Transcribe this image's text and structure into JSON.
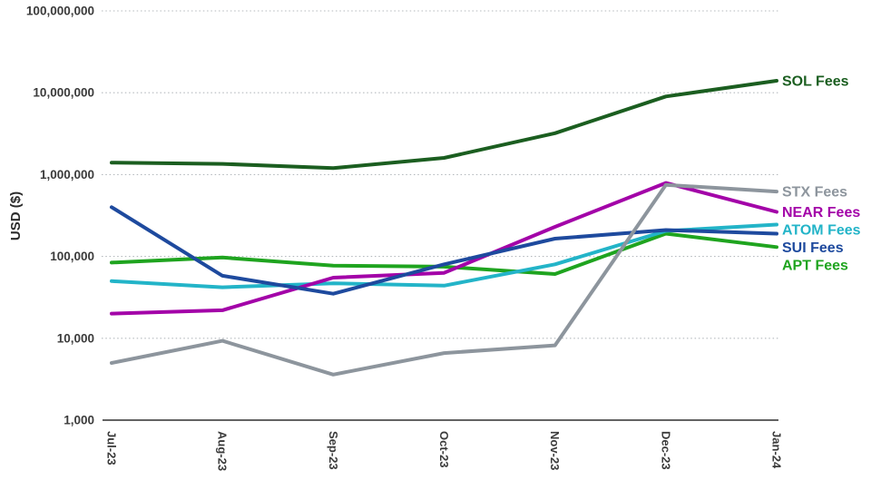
{
  "chart_data": {
    "type": "line",
    "title": "",
    "y_scale": "log",
    "grid": "horizontal-dotted",
    "legend_position": "line-end-right-labels",
    "y_axis": {
      "title": "USD ($)",
      "ylim": [
        1000,
        100000000
      ],
      "ticks": [
        {
          "label": "1,000",
          "value": 1000
        },
        {
          "label": "10,000",
          "value": 10000
        },
        {
          "label": "100,000",
          "value": 100000
        },
        {
          "label": "1,000,000",
          "value": 1000000
        },
        {
          "label": "10,000,000",
          "value": 10000000
        },
        {
          "label": "100,000,000",
          "value": 100000000
        }
      ]
    },
    "x_axis": {
      "labels": [
        "Jul-23",
        "Aug-23",
        "Sep-23",
        "Oct-23",
        "Nov-23",
        "Dec-23",
        "Jan-24"
      ]
    },
    "series": [
      {
        "name": "APT Fees",
        "color": "#1fa41f",
        "values": [
          84000,
          97000,
          77000,
          75000,
          61000,
          190000,
          130000
        ]
      },
      {
        "name": "ATOM Fees",
        "color": "#23b4c8",
        "values": [
          50000,
          42000,
          47000,
          44000,
          80000,
          205000,
          245000
        ]
      },
      {
        "name": "NEAR Fees",
        "color": "#a303a8",
        "values": [
          20000,
          22000,
          55000,
          63000,
          230000,
          790000,
          350000
        ]
      },
      {
        "name": "SUI Fees",
        "color": "#1e4a9e",
        "values": [
          400000,
          58000,
          35000,
          80000,
          165000,
          210000,
          190000
        ]
      },
      {
        "name": "STX Fees",
        "color": "#8d959d",
        "values": [
          5000,
          9300,
          3600,
          6600,
          8200,
          750000,
          620000
        ]
      },
      {
        "name": "SOL Fees",
        "color": "#1b5e20",
        "values": [
          1400000,
          1350000,
          1200000,
          1600000,
          3200000,
          9000000,
          14000000
        ]
      }
    ],
    "colors": {
      "axis_text": "#3b3b3b",
      "axis_line": "#2f2f2f",
      "gridline": "#b4b9bd"
    }
  }
}
